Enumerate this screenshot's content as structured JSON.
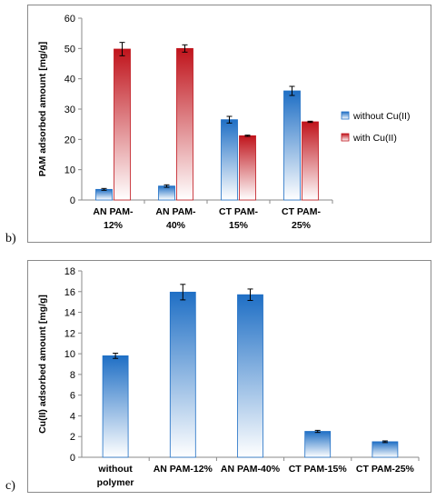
{
  "panels": {
    "b_label": "b)",
    "c_label": "c)"
  },
  "colors": {
    "blue": "#1f6fc5",
    "red": "#c0141c",
    "axis": "#8a8a8a"
  },
  "chart_data": [
    {
      "type": "bar",
      "ylabel": "PAM adsorbed amount  [mg/g]",
      "ylim": [
        0,
        60
      ],
      "yticks": [
        0,
        10,
        20,
        30,
        40,
        50,
        60
      ],
      "categories": [
        [
          "AN PAM-",
          "12%"
        ],
        [
          "AN PAM-",
          "40%"
        ],
        [
          "CT PAM-",
          "15%"
        ],
        [
          "CT PAM-",
          "25%"
        ]
      ],
      "series": [
        {
          "name": "without Cu(II)",
          "values": [
            3.5,
            4.6,
            26.5,
            36.0
          ],
          "errors": [
            0.3,
            0.4,
            1.1,
            1.5
          ]
        },
        {
          "name": "with Cu(II)",
          "values": [
            49.8,
            50.0,
            21.2,
            25.8
          ],
          "errors": [
            2.2,
            1.2,
            0.2,
            0.2
          ]
        }
      ],
      "legend": "right"
    },
    {
      "type": "bar",
      "ylabel": "Cu(II) adsorbed amount  [mg/g]",
      "ylim": [
        0,
        18
      ],
      "yticks": [
        0,
        2,
        4,
        6,
        8,
        10,
        12,
        14,
        16,
        18
      ],
      "categories": [
        [
          "without",
          "polymer"
        ],
        [
          "AN PAM-12%"
        ],
        [
          "AN PAM-40%"
        ],
        [
          "CT PAM-15%"
        ],
        [
          "CT PAM-25%"
        ]
      ],
      "series": [
        {
          "values": [
            9.8,
            15.95,
            15.7,
            2.5,
            1.5
          ],
          "errors": [
            0.25,
            0.75,
            0.55,
            0.1,
            0.08
          ]
        }
      ]
    }
  ]
}
